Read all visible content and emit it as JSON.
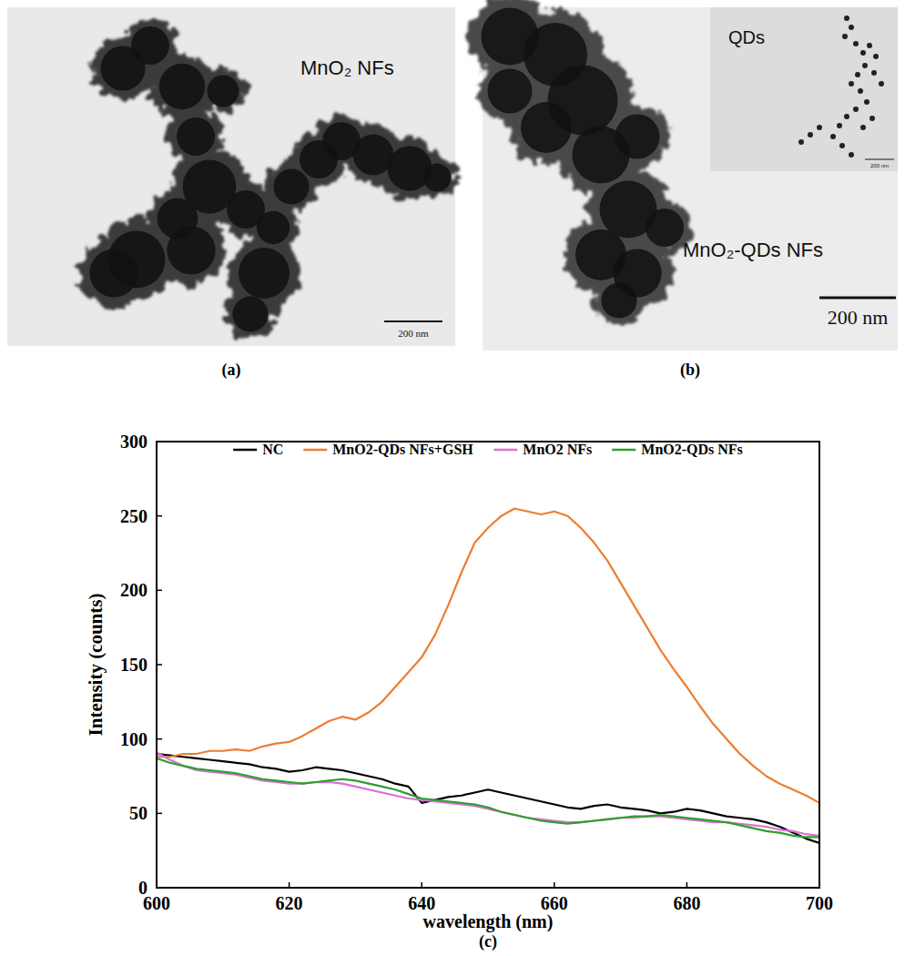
{
  "panels": [
    {
      "label": "(a)",
      "text": "MnO₂ NFs",
      "scale_bar": "200 nm"
    },
    {
      "label": "(b)",
      "text": "MnO₂-QDs NFs",
      "inset_text": "QDs",
      "inset_scale_bar": "200 nm",
      "scale_bar": "200 nm"
    },
    {
      "label": "(c)"
    }
  ],
  "chart_data": {
    "type": "line",
    "x_label": "wavelength (nm)",
    "y_label": "Intensity (counts)",
    "xlim": [
      600,
      700
    ],
    "xticks": [
      600,
      620,
      640,
      660,
      680,
      700
    ],
    "ylim": [
      0,
      300
    ],
    "yticks": [
      0,
      50,
      100,
      150,
      200,
      250,
      300
    ],
    "grid": false,
    "legend": "top",
    "x": [
      600,
      602,
      604,
      606,
      608,
      610,
      612,
      614,
      616,
      618,
      620,
      622,
      624,
      626,
      628,
      630,
      632,
      634,
      636,
      638,
      640,
      642,
      644,
      646,
      648,
      650,
      652,
      654,
      656,
      658,
      660,
      662,
      664,
      666,
      668,
      670,
      672,
      674,
      676,
      678,
      680,
      682,
      684,
      686,
      688,
      690,
      692,
      694,
      696,
      698,
      700
    ],
    "series": [
      {
        "name": "NC",
        "color": "#000000",
        "values": [
          90,
          89,
          88,
          87,
          86,
          85,
          84,
          83,
          81,
          80,
          78,
          79,
          81,
          80,
          79,
          77,
          75,
          73,
          70,
          68,
          57,
          59,
          61,
          62,
          64,
          66,
          64,
          62,
          60,
          58,
          56,
          54,
          53,
          55,
          56,
          54,
          53,
          52,
          50,
          51,
          53,
          52,
          50,
          48,
          47,
          46,
          44,
          41,
          37,
          33,
          30
        ]
      },
      {
        "name": "MnO2-QDs NFs+GSH",
        "color": "#ed7d31",
        "values": [
          88,
          88,
          90,
          90,
          92,
          92,
          93,
          92,
          95,
          97,
          98,
          102,
          107,
          112,
          115,
          113,
          118,
          125,
          135,
          145,
          155,
          170,
          190,
          212,
          232,
          242,
          250,
          255,
          253,
          251,
          253,
          250,
          242,
          232,
          220,
          205,
          190,
          175,
          160,
          147,
          135,
          122,
          110,
          100,
          90,
          82,
          75,
          70,
          66,
          62,
          57
        ]
      },
      {
        "name": "MnO2 NFs",
        "color": "#da70d6",
        "values": [
          91,
          86,
          82,
          79,
          78,
          77,
          76,
          74,
          72,
          71,
          70,
          70,
          71,
          71,
          70,
          68,
          66,
          64,
          62,
          60,
          59,
          58,
          57,
          56,
          55,
          53,
          51,
          49,
          47,
          46,
          45,
          44,
          44,
          45,
          46,
          47,
          47,
          48,
          48,
          47,
          46,
          45,
          44,
          44,
          43,
          42,
          41,
          39,
          38,
          36,
          35
        ]
      },
      {
        "name": "MnO2-QDs NFs",
        "color": "#2ca02c",
        "values": [
          87,
          84,
          82,
          80,
          79,
          78,
          77,
          75,
          73,
          72,
          71,
          70,
          71,
          72,
          73,
          72,
          70,
          68,
          66,
          63,
          60,
          59,
          58,
          57,
          56,
          54,
          51,
          49,
          47,
          45,
          44,
          43,
          44,
          45,
          46,
          47,
          48,
          48,
          49,
          48,
          47,
          46,
          45,
          44,
          42,
          40,
          38,
          37,
          35,
          34,
          34
        ]
      }
    ]
  }
}
